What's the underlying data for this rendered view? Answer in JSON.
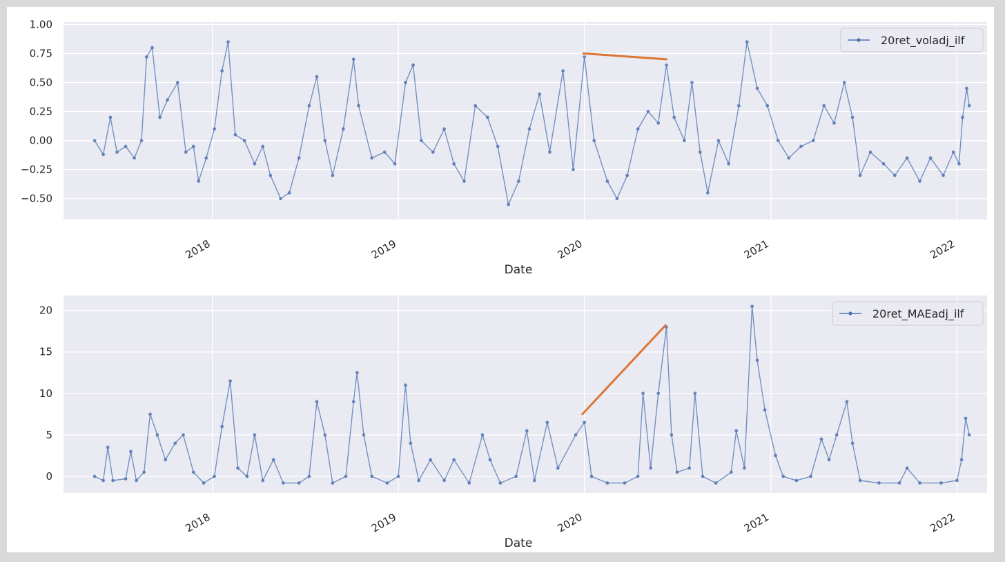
{
  "chart_data": [
    {
      "type": "line",
      "xlabel": "Date",
      "ylabel": "",
      "ylim": [
        -0.68,
        1.02
      ],
      "xlim": [
        "2017-03-15",
        "2022-03-01"
      ],
      "yticks": [
        1.0,
        0.75,
        0.5,
        0.25,
        0.0,
        -0.25,
        -0.5
      ],
      "ytick_labels": [
        "1.00",
        "0.75",
        "0.50",
        "0.25",
        "0.00",
        "−0.25",
        "−0.50"
      ],
      "xticks": [
        "2018-01-01",
        "2019-01-01",
        "2020-01-01",
        "2021-01-01",
        "2022-01-01"
      ],
      "xtick_labels": [
        "2018",
        "2019",
        "2020",
        "2021",
        "2022"
      ],
      "grid": true,
      "legend_position": "top-right",
      "series": [
        {
          "name": "20ret_voladj_ilf",
          "color": "#4c72b0",
          "marker": "dot",
          "points": [
            [
              "2017-05-15",
              0.0
            ],
            [
              "2017-06-01",
              -0.12
            ],
            [
              "2017-06-15",
              0.2
            ],
            [
              "2017-06-28",
              -0.1
            ],
            [
              "2017-07-15",
              -0.05
            ],
            [
              "2017-08-01",
              -0.15
            ],
            [
              "2017-08-15",
              0.0
            ],
            [
              "2017-08-25",
              0.72
            ],
            [
              "2017-09-05",
              0.8
            ],
            [
              "2017-09-20",
              0.2
            ],
            [
              "2017-10-05",
              0.35
            ],
            [
              "2017-10-25",
              0.5
            ],
            [
              "2017-11-10",
              -0.1
            ],
            [
              "2017-11-25",
              -0.05
            ],
            [
              "2017-12-05",
              -0.35
            ],
            [
              "2017-12-20",
              -0.15
            ],
            [
              "2018-01-05",
              0.1
            ],
            [
              "2018-01-20",
              0.6
            ],
            [
              "2018-02-01",
              0.85
            ],
            [
              "2018-02-15",
              0.05
            ],
            [
              "2018-03-05",
              0.0
            ],
            [
              "2018-03-25",
              -0.2
            ],
            [
              "2018-04-10",
              -0.05
            ],
            [
              "2018-04-25",
              -0.3
            ],
            [
              "2018-05-15",
              -0.5
            ],
            [
              "2018-06-01",
              -0.45
            ],
            [
              "2018-06-20",
              -0.15
            ],
            [
              "2018-07-10",
              0.3
            ],
            [
              "2018-07-25",
              0.55
            ],
            [
              "2018-08-10",
              0.0
            ],
            [
              "2018-08-25",
              -0.3
            ],
            [
              "2018-09-15",
              0.1
            ],
            [
              "2018-10-05",
              0.7
            ],
            [
              "2018-10-15",
              0.3
            ],
            [
              "2018-11-10",
              -0.15
            ],
            [
              "2018-12-05",
              -0.1
            ],
            [
              "2018-12-25",
              -0.2
            ],
            [
              "2019-01-15",
              0.5
            ],
            [
              "2019-01-30",
              0.65
            ],
            [
              "2019-02-15",
              0.0
            ],
            [
              "2019-03-10",
              -0.1
            ],
            [
              "2019-04-01",
              0.1
            ],
            [
              "2019-04-20",
              -0.2
            ],
            [
              "2019-05-10",
              -0.35
            ],
            [
              "2019-06-01",
              0.3
            ],
            [
              "2019-06-25",
              0.2
            ],
            [
              "2019-07-15",
              -0.05
            ],
            [
              "2019-08-05",
              -0.55
            ],
            [
              "2019-08-25",
              -0.35
            ],
            [
              "2019-09-15",
              0.1
            ],
            [
              "2019-10-05",
              0.4
            ],
            [
              "2019-10-25",
              -0.1
            ],
            [
              "2019-11-20",
              0.6
            ],
            [
              "2019-12-10",
              -0.25
            ],
            [
              "2020-01-01",
              0.72
            ],
            [
              "2020-01-20",
              0.0
            ],
            [
              "2020-02-15",
              -0.35
            ],
            [
              "2020-03-05",
              -0.5
            ],
            [
              "2020-03-25",
              -0.3
            ],
            [
              "2020-04-15",
              0.1
            ],
            [
              "2020-05-05",
              0.25
            ],
            [
              "2020-05-25",
              0.15
            ],
            [
              "2020-06-10",
              0.65
            ],
            [
              "2020-06-25",
              0.2
            ],
            [
              "2020-07-15",
              0.0
            ],
            [
              "2020-07-30",
              0.5
            ],
            [
              "2020-08-15",
              -0.1
            ],
            [
              "2020-08-30",
              -0.45
            ],
            [
              "2020-09-20",
              0.0
            ],
            [
              "2020-10-10",
              -0.2
            ],
            [
              "2020-10-30",
              0.3
            ],
            [
              "2020-11-15",
              0.85
            ],
            [
              "2020-12-05",
              0.45
            ],
            [
              "2020-12-25",
              0.3
            ],
            [
              "2021-01-15",
              0.0
            ],
            [
              "2021-02-05",
              -0.15
            ],
            [
              "2021-03-01",
              -0.05
            ],
            [
              "2021-03-25",
              0.0
            ],
            [
              "2021-04-15",
              0.3
            ],
            [
              "2021-05-05",
              0.15
            ],
            [
              "2021-05-25",
              0.5
            ],
            [
              "2021-06-10",
              0.2
            ],
            [
              "2021-06-25",
              -0.3
            ],
            [
              "2021-07-15",
              -0.1
            ],
            [
              "2021-08-10",
              -0.2
            ],
            [
              "2021-09-01",
              -0.3
            ],
            [
              "2021-09-25",
              -0.15
            ],
            [
              "2021-10-20",
              -0.35
            ],
            [
              "2021-11-10",
              -0.15
            ],
            [
              "2021-12-05",
              -0.3
            ],
            [
              "2021-12-25",
              -0.1
            ],
            [
              "2022-01-05",
              -0.2
            ],
            [
              "2022-01-12",
              0.2
            ],
            [
              "2022-01-20",
              0.45
            ],
            [
              "2022-01-25",
              0.3
            ]
          ]
        }
      ],
      "annotation_line": {
        "color": "#dd7533",
        "from": [
          "2019-12-30",
          0.75
        ],
        "to": [
          "2020-06-10",
          0.7
        ]
      }
    },
    {
      "type": "line",
      "xlabel": "Date",
      "ylabel": "",
      "ylim": [
        -2.0,
        21.8
      ],
      "xlim": [
        "2017-03-15",
        "2022-03-01"
      ],
      "yticks": [
        20,
        15,
        10,
        5,
        0
      ],
      "ytick_labels": [
        "20",
        "15",
        "10",
        "5",
        "0"
      ],
      "xticks": [
        "2018-01-01",
        "2019-01-01",
        "2020-01-01",
        "2021-01-01",
        "2022-01-01"
      ],
      "xtick_labels": [
        "2018",
        "2019",
        "2020",
        "2021",
        "2022"
      ],
      "grid": true,
      "legend_position": "top-right",
      "series": [
        {
          "name": "20ret_MAEadj_ilf",
          "color": "#4c72b0",
          "marker": "dot",
          "points": [
            [
              "2017-05-15",
              0.0
            ],
            [
              "2017-06-01",
              -0.5
            ],
            [
              "2017-06-10",
              3.5
            ],
            [
              "2017-06-20",
              -0.5
            ],
            [
              "2017-07-15",
              -0.3
            ],
            [
              "2017-07-25",
              3.0
            ],
            [
              "2017-08-05",
              -0.5
            ],
            [
              "2017-08-20",
              0.5
            ],
            [
              "2017-09-01",
              7.5
            ],
            [
              "2017-09-15",
              5.0
            ],
            [
              "2017-10-01",
              2.0
            ],
            [
              "2017-10-20",
              4.0
            ],
            [
              "2017-11-05",
              5.0
            ],
            [
              "2017-11-25",
              0.5
            ],
            [
              "2017-12-15",
              -0.8
            ],
            [
              "2018-01-05",
              0.0
            ],
            [
              "2018-01-20",
              6.0
            ],
            [
              "2018-02-05",
              11.5
            ],
            [
              "2018-02-20",
              1.0
            ],
            [
              "2018-03-10",
              0.0
            ],
            [
              "2018-03-25",
              5.0
            ],
            [
              "2018-04-10",
              -0.5
            ],
            [
              "2018-05-01",
              2.0
            ],
            [
              "2018-05-20",
              -0.8
            ],
            [
              "2018-06-20",
              -0.8
            ],
            [
              "2018-07-10",
              0.0
            ],
            [
              "2018-07-25",
              9.0
            ],
            [
              "2018-08-10",
              5.0
            ],
            [
              "2018-08-25",
              -0.8
            ],
            [
              "2018-09-20",
              0.0
            ],
            [
              "2018-10-05",
              9.0
            ],
            [
              "2018-10-12",
              12.5
            ],
            [
              "2018-10-25",
              5.0
            ],
            [
              "2018-11-10",
              0.0
            ],
            [
              "2018-12-10",
              -0.8
            ],
            [
              "2019-01-01",
              0.0
            ],
            [
              "2019-01-15",
              11.0
            ],
            [
              "2019-01-25",
              4.0
            ],
            [
              "2019-02-10",
              -0.5
            ],
            [
              "2019-03-05",
              2.0
            ],
            [
              "2019-04-01",
              -0.5
            ],
            [
              "2019-04-20",
              2.0
            ],
            [
              "2019-05-20",
              -0.8
            ],
            [
              "2019-06-15",
              5.0
            ],
            [
              "2019-06-30",
              2.0
            ],
            [
              "2019-07-20",
              -0.8
            ],
            [
              "2019-08-20",
              0.0
            ],
            [
              "2019-09-10",
              5.5
            ],
            [
              "2019-09-25",
              -0.5
            ],
            [
              "2019-10-20",
              6.5
            ],
            [
              "2019-11-10",
              1.0
            ],
            [
              "2019-12-15",
              5.0
            ],
            [
              "2020-01-01",
              6.5
            ],
            [
              "2020-01-15",
              0.0
            ],
            [
              "2020-02-15",
              -0.8
            ],
            [
              "2020-03-20",
              -0.8
            ],
            [
              "2020-04-15",
              0.0
            ],
            [
              "2020-04-25",
              10.0
            ],
            [
              "2020-05-10",
              1.0
            ],
            [
              "2020-05-25",
              10.0
            ],
            [
              "2020-06-10",
              18.0
            ],
            [
              "2020-06-20",
              5.0
            ],
            [
              "2020-07-01",
              0.5
            ],
            [
              "2020-07-25",
              1.0
            ],
            [
              "2020-08-05",
              10.0
            ],
            [
              "2020-08-20",
              0.0
            ],
            [
              "2020-09-15",
              -0.8
            ],
            [
              "2020-10-15",
              0.5
            ],
            [
              "2020-10-25",
              5.5
            ],
            [
              "2020-11-10",
              1.0
            ],
            [
              "2020-11-25",
              20.5
            ],
            [
              "2020-12-05",
              14.0
            ],
            [
              "2020-12-20",
              8.0
            ],
            [
              "2021-01-10",
              2.5
            ],
            [
              "2021-01-25",
              0.0
            ],
            [
              "2021-02-20",
              -0.5
            ],
            [
              "2021-03-20",
              0.0
            ],
            [
              "2021-04-10",
              4.5
            ],
            [
              "2021-04-25",
              2.0
            ],
            [
              "2021-05-10",
              5.0
            ],
            [
              "2021-05-30",
              9.0
            ],
            [
              "2021-06-10",
              4.0
            ],
            [
              "2021-06-25",
              -0.5
            ],
            [
              "2021-08-01",
              -0.8
            ],
            [
              "2021-09-10",
              -0.8
            ],
            [
              "2021-09-25",
              1.0
            ],
            [
              "2021-10-20",
              -0.8
            ],
            [
              "2021-12-01",
              -0.8
            ],
            [
              "2022-01-01",
              -0.5
            ],
            [
              "2022-01-10",
              2.0
            ],
            [
              "2022-01-18",
              7.0
            ],
            [
              "2022-01-25",
              5.0
            ]
          ]
        }
      ],
      "annotation_line": {
        "color": "#dd7533",
        "from": [
          "2019-12-28",
          7.5
        ],
        "to": [
          "2020-06-08",
          18.2
        ]
      }
    }
  ]
}
